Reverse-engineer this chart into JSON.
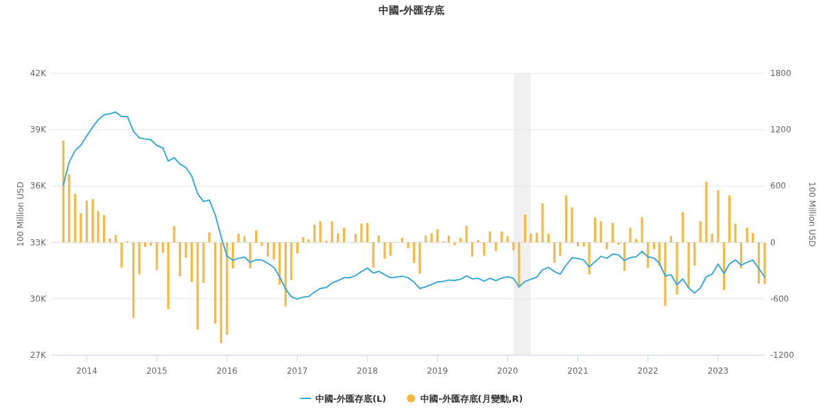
{
  "chart_data": {
    "type": "line",
    "title": "中國-外匯存底",
    "ylabel": "100 Million USD",
    "y2label": "100 Million USD",
    "x": [
      "2013-09",
      "2013-10",
      "2013-11",
      "2013-12",
      "2014-01",
      "2014-02",
      "2014-03",
      "2014-04",
      "2014-05",
      "2014-06",
      "2014-07",
      "2014-08",
      "2014-09",
      "2014-10",
      "2014-11",
      "2014-12",
      "2015-01",
      "2015-02",
      "2015-03",
      "2015-04",
      "2015-05",
      "2015-06",
      "2015-07",
      "2015-08",
      "2015-09",
      "2015-10",
      "2015-11",
      "2015-12",
      "2016-01",
      "2016-02",
      "2016-03",
      "2016-04",
      "2016-05",
      "2016-06",
      "2016-07",
      "2016-08",
      "2016-09",
      "2016-10",
      "2016-11",
      "2016-12",
      "2017-01",
      "2017-02",
      "2017-03",
      "2017-04",
      "2017-05",
      "2017-06",
      "2017-07",
      "2017-08",
      "2017-09",
      "2017-10",
      "2017-11",
      "2017-12",
      "2018-01",
      "2018-02",
      "2018-03",
      "2018-04",
      "2018-05",
      "2018-06",
      "2018-07",
      "2018-08",
      "2018-09",
      "2018-10",
      "2018-11",
      "2018-12",
      "2019-01",
      "2019-02",
      "2019-03",
      "2019-04",
      "2019-05",
      "2019-06",
      "2019-07",
      "2019-08",
      "2019-09",
      "2019-10",
      "2019-11",
      "2019-12",
      "2020-01",
      "2020-02",
      "2020-03",
      "2020-04",
      "2020-05",
      "2020-06",
      "2020-07",
      "2020-08",
      "2020-09",
      "2020-10",
      "2020-11",
      "2020-12",
      "2021-01",
      "2021-02",
      "2021-03",
      "2021-04",
      "2021-05",
      "2021-06",
      "2021-07",
      "2021-08",
      "2021-09",
      "2021-10",
      "2021-11",
      "2021-12",
      "2022-01",
      "2022-02",
      "2022-03",
      "2022-04",
      "2022-05",
      "2022-06",
      "2022-07",
      "2022-08",
      "2022-09",
      "2022-10",
      "2022-11",
      "2022-12",
      "2023-01",
      "2023-02",
      "2023-03",
      "2023-04",
      "2023-05",
      "2023-06",
      "2023-07",
      "2023-08",
      "2023-09"
    ],
    "series": [
      {
        "name": "中國-外匯存底(L)",
        "color": "#39a9d6",
        "values": [
          36050,
          37270,
          37880,
          38180,
          38670,
          39150,
          39520,
          39790,
          39850,
          39940,
          39700,
          39700,
          38910,
          38570,
          38510,
          38460,
          38160,
          38030,
          37330,
          37510,
          37170,
          36990,
          36540,
          35590,
          35180,
          35260,
          34470,
          33310,
          32280,
          32050,
          32160,
          32220,
          31940,
          32080,
          32060,
          31890,
          31670,
          31180,
          30520,
          30110,
          29990,
          30090,
          30120,
          30360,
          30550,
          30600,
          30840,
          30970,
          31120,
          31120,
          31240,
          31450,
          31630,
          31370,
          31460,
          31280,
          31120,
          31150,
          31210,
          31120,
          30880,
          30550,
          30640,
          30760,
          30900,
          30920,
          31000,
          30980,
          31040,
          31220,
          31060,
          31090,
          30940,
          31090,
          30970,
          31090,
          31180,
          31090,
          30640,
          30920,
          31040,
          31150,
          31550,
          31670,
          31450,
          31310,
          31790,
          32180,
          32150,
          32060,
          31700,
          31970,
          32260,
          32160,
          32380,
          32340,
          32040,
          32190,
          32240,
          32520,
          32240,
          32160,
          31910,
          31220,
          31280,
          30750,
          31060,
          30580,
          30310,
          30580,
          31180,
          31310,
          31850,
          31340,
          31850,
          32070,
          31790,
          31940,
          32060,
          31610,
          31160
        ]
      },
      {
        "name": "中國-外匯存底(月變動,R)",
        "type": "bar",
        "axis": "y2",
        "color": "#f5b841",
        "values": [
          1083,
          725,
          516,
          311,
          445,
          462,
          336,
          292,
          41,
          80,
          -268,
          12,
          -803,
          -341,
          -49,
          -36,
          -292,
          -109,
          -710,
          175,
          -360,
          -165,
          -421,
          -929,
          -431,
          107,
          -864,
          -1071,
          -985,
          -275,
          92,
          66,
          -275,
          127,
          -36,
          -151,
          -182,
          -450,
          -681,
          -401,
          -117,
          56,
          32,
          190,
          226,
          19,
          226,
          97,
          158,
          null,
          92,
          200,
          207,
          -268,
          73,
          -175,
          -141,
          null,
          49,
          -61,
          -219,
          -336,
          73,
          97,
          141,
          12,
          73,
          -29,
          49,
          175,
          -151,
          24,
          -141,
          117,
          -92,
          117,
          66,
          -85,
          -482,
          297,
          92,
          102,
          414,
          92,
          -219,
          -141,
          499,
          372,
          -40,
          -44,
          -341,
          268,
          226,
          -73,
          207,
          -24,
          -304,
          158,
          36,
          268,
          -273,
          -73,
          -248,
          -676,
          68,
          -555,
          321,
          -482,
          -248,
          224,
          645,
          92,
          555,
          -506,
          499,
          200,
          -275,
          158,
          102,
          -438,
          -445
        ]
      }
    ],
    "xlim": [
      "2013-07",
      "2023-09"
    ],
    "xticks": [
      "2014",
      "2015",
      "2016",
      "2017",
      "2018",
      "2019",
      "2020",
      "2021",
      "2022",
      "2023"
    ],
    "ylim": [
      27000,
      42000
    ],
    "yticks": [
      {
        "value": 27000,
        "label": "27K"
      },
      {
        "value": 30000,
        "label": "30K"
      },
      {
        "value": 33000,
        "label": "33K"
      },
      {
        "value": 36000,
        "label": "36K"
      },
      {
        "value": 39000,
        "label": "39K"
      },
      {
        "value": 42000,
        "label": "42K"
      }
    ],
    "y2lim": [
      -1200,
      1800
    ],
    "y2ticks": [
      -1200,
      -600,
      0,
      600,
      1200,
      1800
    ],
    "grid": "y",
    "legend": "bottom",
    "bands": [
      {
        "axis": "x",
        "from": "2020-02",
        "to": "2020-05",
        "color": "#f0f0f0"
      }
    ],
    "ref_lines": [
      {
        "axis": "y2",
        "value": 0,
        "line_style": "dotted",
        "color": "#cccccc"
      }
    ]
  }
}
